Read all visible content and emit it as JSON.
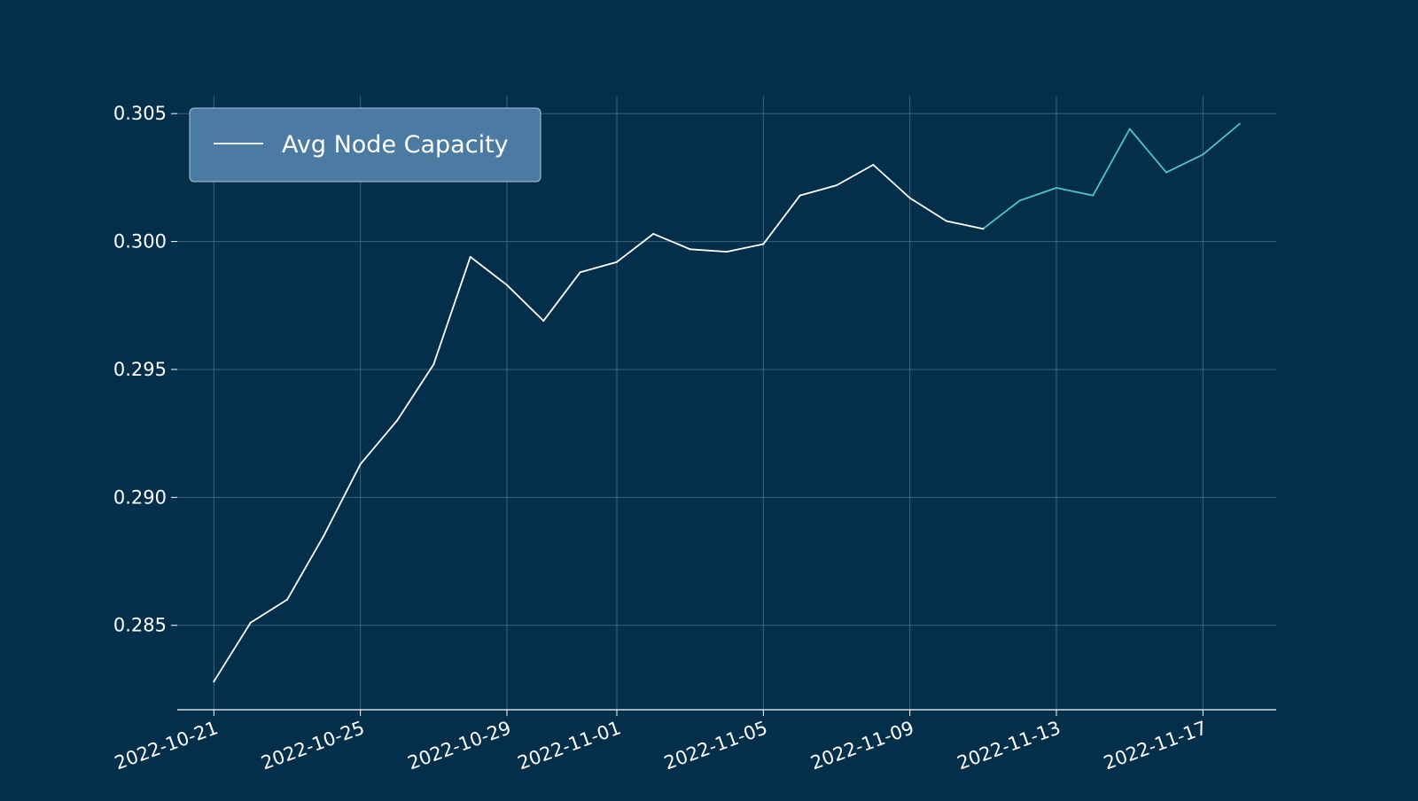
{
  "chart_data": {
    "type": "line",
    "title": "",
    "xlabel": "",
    "ylabel": "",
    "x_range": [
      "2022-10-20",
      "2022-11-19"
    ],
    "ylim": [
      0.2817,
      0.3057
    ],
    "grid": true,
    "legend_position": "top-left",
    "x_ticks": [
      "2022-10-21",
      "2022-10-25",
      "2022-10-29",
      "2022-11-01",
      "2022-11-05",
      "2022-11-09",
      "2022-11-13",
      "2022-11-17"
    ],
    "y_ticks": [
      "0.285",
      "0.290",
      "0.295",
      "0.300",
      "0.305"
    ],
    "colors": {
      "background": "#042f4a",
      "grid": "#54708a",
      "series": "#ffffff",
      "highlight_segment": "#4fc4c8",
      "legend_bg": "#4b7aa3"
    },
    "series": [
      {
        "name": "Avg Node Capacity",
        "x": [
          "2022-10-21",
          "2022-10-22",
          "2022-10-23",
          "2022-10-24",
          "2022-10-25",
          "2022-10-26",
          "2022-10-27",
          "2022-10-28",
          "2022-10-29",
          "2022-10-30",
          "2022-10-31",
          "2022-11-01",
          "2022-11-02",
          "2022-11-03",
          "2022-11-04",
          "2022-11-05",
          "2022-11-06",
          "2022-11-07",
          "2022-11-08",
          "2022-11-09",
          "2022-11-10",
          "2022-11-11",
          "2022-11-12",
          "2022-11-13",
          "2022-11-14",
          "2022-11-15",
          "2022-11-16",
          "2022-11-17",
          "2022-11-18"
        ],
        "values": [
          0.2828,
          0.2851,
          0.286,
          0.2885,
          0.2913,
          0.293,
          0.2952,
          0.2994,
          0.2983,
          0.2969,
          0.2988,
          0.2992,
          0.3003,
          0.2997,
          0.2996,
          0.2999,
          0.3018,
          0.3022,
          0.303,
          0.3017,
          0.3008,
          0.3005,
          0.3016,
          0.3021,
          0.3018,
          0.3044,
          0.3027,
          0.3034,
          0.3046
        ],
        "highlight_from": "2022-11-11"
      }
    ]
  }
}
